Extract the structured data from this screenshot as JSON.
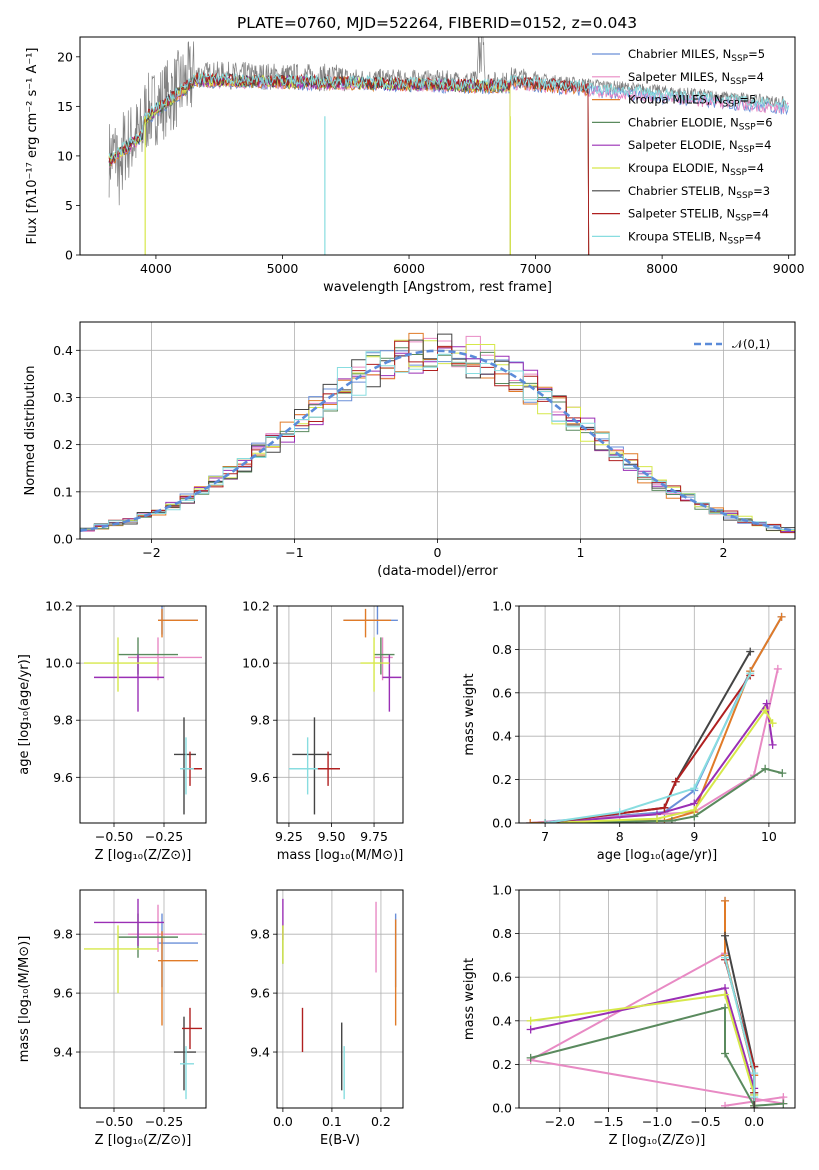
{
  "title": "PLATE=0760, MJD=52264, FIBERID=0152, z=0.043",
  "chart_data": [
    {
      "id": "spectrum",
      "type": "line",
      "xlabel": "wavelength [Angstrom, rest frame]",
      "ylabel": "Flux [fλ10⁻¹⁷ erg cm⁻² s⁻¹ A⁻¹]",
      "xlim": [
        3400,
        9050
      ],
      "ylim": [
        0,
        22
      ],
      "xticks": [
        4000,
        5000,
        6000,
        7000,
        8000,
        9000
      ],
      "yticks": [
        0,
        5,
        10,
        15,
        20
      ],
      "grid": false,
      "legend_position": "top-right",
      "data_series": {
        "name": "",
        "color": "#808080"
      },
      "series": [
        {
          "name": "Chabrier MILES, N_SSP=5",
          "label": "Chabrier MILES, N",
          "sub": "SSP",
          "suffix": "=5",
          "color": "#6a8fd8",
          "end": 9000
        },
        {
          "name": "Salpeter MILES, N_SSP=4",
          "label": "Salpeter MILES, N",
          "sub": "SSP",
          "suffix": "=4",
          "color": "#e88ac4",
          "end": 9000
        },
        {
          "name": "Kroupa MILES, N_SSP=5",
          "label": "Kroupa MILES, N",
          "sub": "SSP",
          "suffix": "=5",
          "color": "#e07b28",
          "end": 7420
        },
        {
          "name": "Chabrier ELODIE, N_SSP=6",
          "label": "Chabrier ELODIE, N",
          "sub": "SSP",
          "suffix": "=6",
          "color": "#5a8a5e",
          "end": 6800
        },
        {
          "name": "Salpeter ELODIE, N_SSP=4",
          "label": "Salpeter ELODIE, N",
          "sub": "SSP",
          "suffix": "=4",
          "color": "#9a2fb5",
          "end": 6800
        },
        {
          "name": "Kroupa ELODIE, N_SSP=4",
          "label": "Kroupa ELODIE, N",
          "sub": "SSP",
          "suffix": "=4",
          "color": "#d6e84a",
          "end": 6800
        },
        {
          "name": "Chabrier STELIB, N_SSP=3",
          "label": "Chabrier STELIB, N",
          "sub": "SSP",
          "suffix": "=3",
          "color": "#444444",
          "end": 7420
        },
        {
          "name": "Salpeter STELIB, N_SSP=4",
          "label": "Salpeter STELIB, N",
          "sub": "SSP",
          "suffix": "=4",
          "color": "#b02020",
          "end": 7420
        },
        {
          "name": "Kroupa STELIB, N_SSP=4",
          "label": "Kroupa STELIB, N",
          "sub": "SSP",
          "suffix": "=4",
          "color": "#88dde0",
          "end": 9000
        }
      ]
    },
    {
      "id": "residuals",
      "type": "line",
      "xlabel": "(data-model)/error",
      "ylabel": "Normed distribution",
      "xlim": [
        -2.5,
        2.5
      ],
      "ylim": [
        0,
        0.46
      ],
      "xticks": [
        -2,
        -1,
        0,
        1,
        2
      ],
      "yticks": [
        0.0,
        0.1,
        0.2,
        0.3,
        0.4
      ],
      "grid": true,
      "legend_position": "top-right",
      "gaussian": {
        "name": "𝒩(0,1)",
        "mean": 0,
        "sigma": 1,
        "color": "#5b8bd9"
      },
      "bin_width": 0.1
    },
    {
      "id": "age-vs-Z",
      "type": "scatter",
      "xlabel": "Z [log₁₀(Z/Z⊙)]",
      "ylabel": "age  [log₁₀(age/yr)]",
      "xlim": [
        -0.67,
        -0.04
      ],
      "ylim": [
        9.44,
        10.2
      ],
      "xticks": [
        -0.5,
        -0.25
      ],
      "yticks": [
        9.6,
        9.8,
        10.0,
        10.2
      ],
      "grid": true,
      "points": [
        {
          "color": "#6a8fd8",
          "x": -0.26,
          "xerr": [
            0.02,
            0.18
          ],
          "y": 10.15,
          "yerr": [
            0.05,
            0.05
          ]
        },
        {
          "color": "#e88ac4",
          "x": -0.28,
          "xerr": [
            0.15,
            0.22
          ],
          "y": 10.02,
          "yerr": [
            0.08,
            0.07
          ]
        },
        {
          "color": "#e07b28",
          "x": -0.26,
          "xerr": [
            0.02,
            0.18
          ],
          "y": 10.15,
          "yerr": [
            0.06,
            0.04
          ]
        },
        {
          "color": "#5a8a5e",
          "x": -0.38,
          "xerr": [
            0.1,
            0.2
          ],
          "y": 10.03,
          "yerr": [
            0.07,
            0.06
          ]
        },
        {
          "color": "#9a2fb5",
          "x": -0.38,
          "xerr": [
            0.22,
            0.13
          ],
          "y": 9.95,
          "yerr": [
            0.12,
            0.08
          ]
        },
        {
          "color": "#d6e84a",
          "x": -0.48,
          "xerr": [
            0.17,
            0.2
          ],
          "y": 10.0,
          "yerr": [
            0.1,
            0.09
          ]
        },
        {
          "color": "#444444",
          "x": -0.15,
          "xerr": [
            0.05,
            0.06
          ],
          "y": 9.68,
          "yerr": [
            0.21,
            0.13
          ]
        },
        {
          "color": "#b02020",
          "x": -0.12,
          "xerr": [
            0.04,
            0.06
          ],
          "y": 9.63,
          "yerr": [
            0.06,
            0.06
          ]
        },
        {
          "color": "#88dde0",
          "x": -0.14,
          "xerr": [
            0.03,
            0.04
          ],
          "y": 9.63,
          "yerr": [
            0.09,
            0.11
          ]
        }
      ]
    },
    {
      "id": "age-vs-mass",
      "type": "scatter",
      "xlabel": "mass [log₁₀(M/M⊙)]",
      "ylabel": "",
      "xlim": [
        9.18,
        9.92
      ],
      "ylim": [
        9.44,
        10.2
      ],
      "xticks": [
        9.25,
        9.5,
        9.75
      ],
      "yticks": [
        9.6,
        9.8,
        10.0,
        10.2
      ],
      "grid": true,
      "points": [
        {
          "color": "#6a8fd8",
          "x": 9.77,
          "xerr": [
            0.2,
            0.12
          ],
          "y": 10.15,
          "yerr": [
            0.05,
            0.05
          ]
        },
        {
          "color": "#e88ac4",
          "x": 9.8,
          "xerr": [
            0.05,
            0.06
          ],
          "y": 10.02,
          "yerr": [
            0.08,
            0.07
          ]
        },
        {
          "color": "#e07b28",
          "x": 9.7,
          "xerr": [
            0.13,
            0.15
          ],
          "y": 10.15,
          "yerr": [
            0.06,
            0.04
          ]
        },
        {
          "color": "#5a8a5e",
          "x": 9.79,
          "xerr": [
            0.04,
            0.08
          ],
          "y": 10.03,
          "yerr": [
            0.07,
            0.06
          ]
        },
        {
          "color": "#9a2fb5",
          "x": 9.84,
          "xerr": [
            0.04,
            0.07
          ],
          "y": 9.95,
          "yerr": [
            0.12,
            0.08
          ]
        },
        {
          "color": "#d6e84a",
          "x": 9.75,
          "xerr": [
            0.08,
            0.09
          ],
          "y": 10.0,
          "yerr": [
            0.1,
            0.09
          ]
        },
        {
          "color": "#444444",
          "x": 9.4,
          "xerr": [
            0.13,
            0.1
          ],
          "y": 9.68,
          "yerr": [
            0.21,
            0.13
          ]
        },
        {
          "color": "#b02020",
          "x": 9.48,
          "xerr": [
            0.1,
            0.07
          ],
          "y": 9.63,
          "yerr": [
            0.06,
            0.06
          ]
        },
        {
          "color": "#88dde0",
          "x": 9.36,
          "xerr": [
            0.11,
            0.06
          ],
          "y": 9.63,
          "yerr": [
            0.09,
            0.11
          ]
        }
      ]
    },
    {
      "id": "weight-vs-age",
      "type": "line",
      "xlabel": "age  [log₁₀(age/yr)]",
      "ylabel": "mass weight",
      "xlim": [
        6.65,
        10.35
      ],
      "ylim": [
        0,
        1.0
      ],
      "xticks": [
        7,
        8,
        9,
        10
      ],
      "yticks": [
        0.0,
        0.2,
        0.4,
        0.6,
        0.8,
        1.0
      ],
      "grid": true,
      "series": [
        {
          "color": "#6a8fd8",
          "x": [
            6.8,
            8.6,
            9.0,
            9.75,
            10.17
          ],
          "y": [
            0.0,
            0.05,
            0.15,
            0.7,
            0.95
          ]
        },
        {
          "color": "#e88ac4",
          "x": [
            6.8,
            8.0,
            9.0,
            9.8,
            10.12
          ],
          "y": [
            0.0,
            0.03,
            0.05,
            0.22,
            0.71
          ]
        },
        {
          "color": "#e07b28",
          "x": [
            6.8,
            8.6,
            9.0,
            9.75,
            10.17
          ],
          "y": [
            0.0,
            0.01,
            0.05,
            0.7,
            0.95
          ]
        },
        {
          "color": "#5a8a5e",
          "x": [
            7.0,
            8.7,
            9.0,
            9.95,
            10.18
          ],
          "y": [
            0.0,
            0.01,
            0.03,
            0.25,
            0.23
          ]
        },
        {
          "color": "#9a2fb5",
          "x": [
            7.0,
            8.5,
            9.0,
            9.97,
            10.05
          ],
          "y": [
            0.0,
            0.04,
            0.09,
            0.55,
            0.36
          ]
        },
        {
          "color": "#d6e84a",
          "x": [
            7.0,
            8.5,
            9.0,
            9.95,
            10.05
          ],
          "y": [
            0.0,
            0.02,
            0.06,
            0.52,
            0.46
          ]
        },
        {
          "color": "#444444",
          "x": [
            7.0,
            8.6,
            8.75,
            9.75
          ],
          "y": [
            0.0,
            0.07,
            0.19,
            0.79
          ]
        },
        {
          "color": "#b02020",
          "x": [
            7.0,
            8.6,
            8.75,
            9.75
          ],
          "y": [
            0.0,
            0.07,
            0.19,
            0.68
          ]
        },
        {
          "color": "#88dde0",
          "x": [
            7.0,
            8.0,
            9.0,
            9.75
          ],
          "y": [
            0.0,
            0.05,
            0.16,
            0.69
          ]
        }
      ]
    },
    {
      "id": "mass-vs-Z",
      "type": "scatter",
      "xlabel": "Z [log₁₀(Z/Z⊙)]",
      "ylabel": "mass [log₁₀(M/M⊙)]",
      "xlim": [
        -0.67,
        -0.04
      ],
      "ylim": [
        9.21,
        9.95
      ],
      "xticks": [
        -0.5,
        -0.25
      ],
      "yticks": [
        9.4,
        9.6,
        9.8
      ],
      "grid": true,
      "points": [
        {
          "color": "#6a8fd8",
          "x": -0.26,
          "xerr": [
            0.02,
            0.18
          ],
          "y": 9.77,
          "yerr": [
            0.15,
            0.1
          ]
        },
        {
          "color": "#e88ac4",
          "x": -0.28,
          "xerr": [
            0.15,
            0.22
          ],
          "y": 9.8,
          "yerr": [
            0.06,
            0.1
          ]
        },
        {
          "color": "#e07b28",
          "x": -0.26,
          "xerr": [
            0.02,
            0.18
          ],
          "y": 9.71,
          "yerr": [
            0.22,
            0.1
          ]
        },
        {
          "color": "#5a8a5e",
          "x": -0.38,
          "xerr": [
            0.1,
            0.2
          ],
          "y": 9.79,
          "yerr": [
            0.07,
            0.08
          ]
        },
        {
          "color": "#9a2fb5",
          "x": -0.38,
          "xerr": [
            0.22,
            0.13
          ],
          "y": 9.84,
          "yerr": [
            0.08,
            0.08
          ]
        },
        {
          "color": "#d6e84a",
          "x": -0.48,
          "xerr": [
            0.17,
            0.2
          ],
          "y": 9.75,
          "yerr": [
            0.15,
            0.08
          ]
        },
        {
          "color": "#444444",
          "x": -0.15,
          "xerr": [
            0.05,
            0.06
          ],
          "y": 9.4,
          "yerr": [
            0.13,
            0.12
          ]
        },
        {
          "color": "#b02020",
          "x": -0.12,
          "xerr": [
            0.04,
            0.06
          ],
          "y": 9.48,
          "yerr": [
            0.07,
            0.07
          ]
        },
        {
          "color": "#88dde0",
          "x": -0.14,
          "xerr": [
            0.03,
            0.04
          ],
          "y": 9.36,
          "yerr": [
            0.12,
            0.06
          ]
        }
      ]
    },
    {
      "id": "mass-vs-EBV",
      "type": "scatter",
      "xlabel": "E(B-V)",
      "ylabel": "",
      "xlim": [
        -0.012,
        0.245
      ],
      "ylim": [
        9.21,
        9.95
      ],
      "xticks": [
        0.0,
        0.1,
        0.2
      ],
      "yticks": [
        9.4,
        9.6,
        9.8
      ],
      "grid": true,
      "points": [
        {
          "color": "#6a8fd8",
          "x": 0.23,
          "xerr": [
            0,
            0
          ],
          "y": 9.77,
          "yerr": [
            0.15,
            0.1
          ]
        },
        {
          "color": "#e88ac4",
          "x": 0.19,
          "xerr": [
            0,
            0
          ],
          "y": 9.8,
          "yerr": [
            0.13,
            0.11
          ]
        },
        {
          "color": "#e07b28",
          "x": 0.23,
          "xerr": [
            0,
            0
          ],
          "y": 9.71,
          "yerr": [
            0.22,
            0.14
          ]
        },
        {
          "color": "#5a8a5e",
          "x": 0.0,
          "xerr": [
            0,
            0
          ],
          "y": 9.79,
          "yerr": [
            0.09,
            0.04
          ]
        },
        {
          "color": "#9a2fb5",
          "x": 0.0,
          "xerr": [
            0,
            0
          ],
          "y": 9.84,
          "yerr": [
            0.06,
            0.08
          ]
        },
        {
          "color": "#d6e84a",
          "x": 0.0,
          "xerr": [
            0,
            0
          ],
          "y": 9.75,
          "yerr": [
            0.05,
            0.08
          ]
        },
        {
          "color": "#444444",
          "x": 0.12,
          "xerr": [
            0,
            0
          ],
          "y": 9.4,
          "yerr": [
            0.13,
            0.1
          ]
        },
        {
          "color": "#b02020",
          "x": 0.04,
          "xerr": [
            0,
            0
          ],
          "y": 9.48,
          "yerr": [
            0.08,
            0.07
          ]
        },
        {
          "color": "#88dde0",
          "x": 0.125,
          "xerr": [
            0,
            0
          ],
          "y": 9.33,
          "yerr": [
            0.09,
            0.09
          ]
        }
      ]
    },
    {
      "id": "weight-vs-Z",
      "type": "line",
      "xlabel": "Z [log₁₀(Z/Z⊙)]",
      "ylabel": "mass weight",
      "xlim": [
        -2.42,
        0.42
      ],
      "ylim": [
        0,
        1.0
      ],
      "xticks": [
        -2.0,
        -1.5,
        -1.0,
        -0.5,
        0.0
      ],
      "yticks": [
        0.0,
        0.2,
        0.4,
        0.6,
        0.8,
        1.0
      ],
      "grid": true,
      "series": [
        {
          "color": "#6a8fd8",
          "x": [
            -0.3,
            -0.3,
            0.0,
            0.0
          ],
          "y": [
            0.95,
            0.7,
            0.15,
            0.06
          ]
        },
        {
          "color": "#e88ac4",
          "x": [
            -0.3,
            -2.3,
            0.3,
            0.3,
            -0.3
          ],
          "y": [
            0.71,
            0.22,
            0.02,
            0.05,
            0.01
          ]
        },
        {
          "color": "#e07b28",
          "x": [
            -0.3,
            -0.3,
            0.0,
            0.0
          ],
          "y": [
            0.95,
            0.7,
            0.15,
            0.01
          ]
        },
        {
          "color": "#5a8a5e",
          "x": [
            -2.3,
            -0.3,
            -0.3,
            0.0,
            0.3
          ],
          "y": [
            0.23,
            0.46,
            0.25,
            0.01,
            0.02
          ]
        },
        {
          "color": "#9a2fb5",
          "x": [
            -2.3,
            -0.3,
            0.0,
            0.0
          ],
          "y": [
            0.36,
            0.55,
            0.09,
            0.0
          ]
        },
        {
          "color": "#d6e84a",
          "x": [
            -2.3,
            -0.3,
            0.0,
            0.0
          ],
          "y": [
            0.4,
            0.52,
            0.06,
            0.0
          ]
        },
        {
          "color": "#444444",
          "x": [
            -0.3,
            0.0,
            0.0,
            0.0
          ],
          "y": [
            0.79,
            0.19,
            0.07,
            0.0
          ]
        },
        {
          "color": "#b02020",
          "x": [
            -0.3,
            0.0,
            0.0
          ],
          "y": [
            0.68,
            0.19,
            0.07
          ]
        },
        {
          "color": "#88dde0",
          "x": [
            -0.3,
            0.0,
            0.0
          ],
          "y": [
            0.69,
            0.16,
            0.05
          ]
        }
      ]
    }
  ]
}
